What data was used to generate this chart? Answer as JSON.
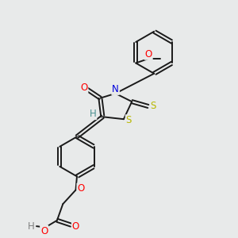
{
  "bg_color": "#e8eaea",
  "bond_color": "#1a1a1a",
  "bond_width": 1.4,
  "figsize": [
    3.0,
    3.0
  ],
  "dpi": 100,
  "colors": {
    "O": "#ff0000",
    "N": "#0000dd",
    "S": "#b8b800",
    "H_exo": "#4a9090",
    "H_acid": "#808080",
    "C": "#1a1a1a"
  }
}
